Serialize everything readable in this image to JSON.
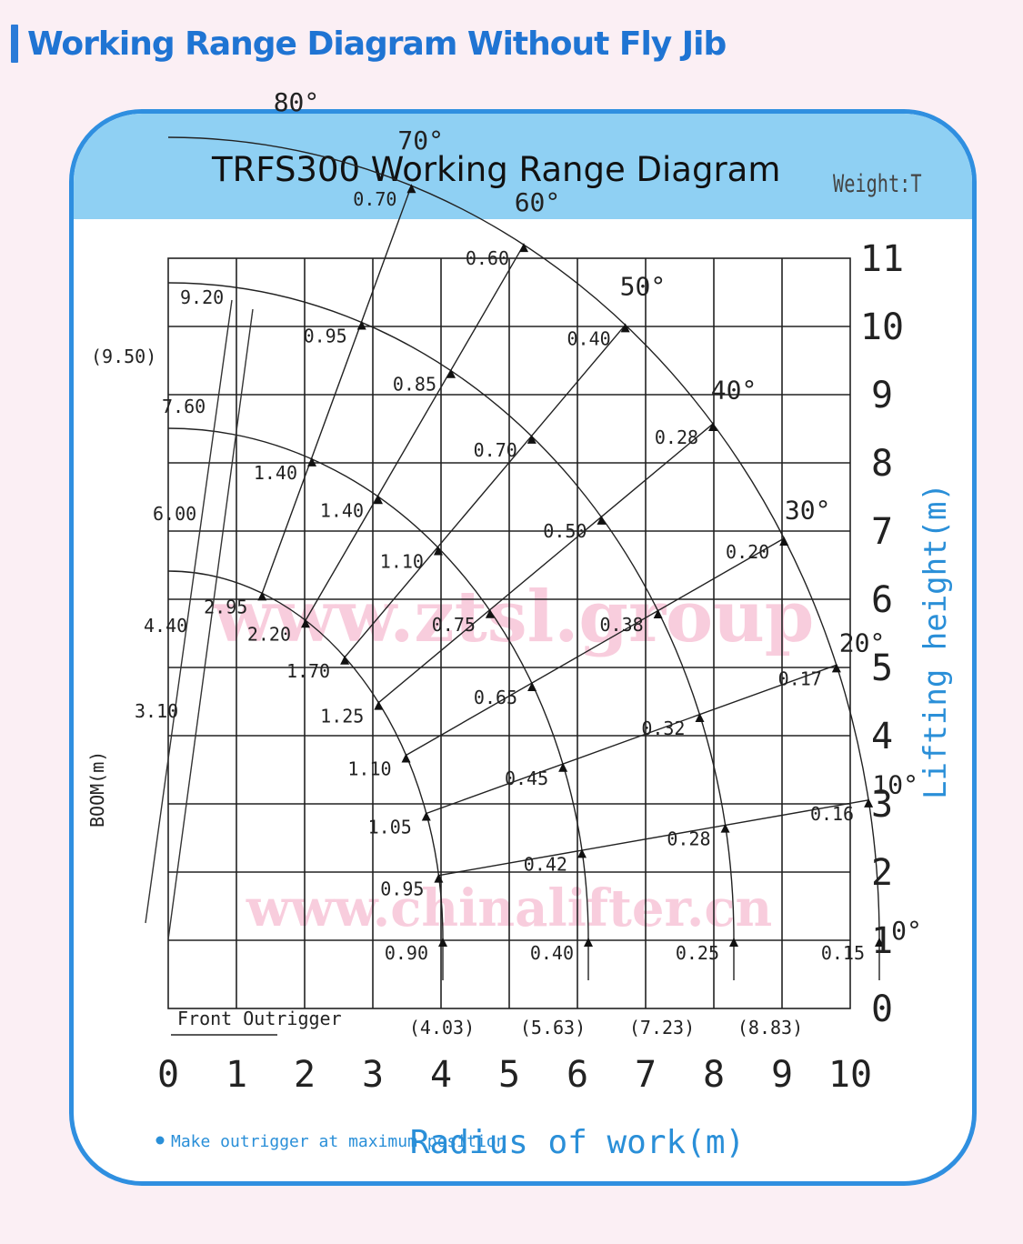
{
  "page_heading": "Working Range Diagram Without Fly Jib",
  "card": {
    "title": "TRFS300  Working Range Diagram",
    "weight_unit": "Weight:T",
    "note": "Make outrigger at maximum position",
    "front_outrigger": "Front Outrigger",
    "boom_label": "BOOM(m)",
    "watermarks": [
      "www.ztsl.group",
      "www.chinalifter.cn"
    ],
    "colors": {
      "accent_border": "#2f8fe0",
      "header_band": "#8fd0f3",
      "axis_title": "#2a8fd8",
      "background": "#fbeff4"
    }
  },
  "chart_data": {
    "type": "diagram",
    "xlabel": "Radius of work(m)",
    "ylabel": "Lifting height(m)",
    "x_ticks": [
      "0",
      "1",
      "2",
      "3",
      "4",
      "5",
      "6",
      "7",
      "8",
      "9",
      "10"
    ],
    "y_ticks": [
      "0",
      "1",
      "2",
      "3",
      "4",
      "5",
      "6",
      "7",
      "8",
      "9",
      "10",
      "11"
    ],
    "xlim": [
      0,
      10
    ],
    "ylim": [
      0,
      11
    ],
    "boom_lengths": [
      "9.20",
      "(9.50)",
      "7.60",
      "6.00",
      "4.40",
      "3.10"
    ],
    "max_radii": [
      "(4.03)",
      "(5.63)",
      "(7.23)",
      "(8.83)"
    ],
    "angle_labels": [
      "80°",
      "70°",
      "60°",
      "50°",
      "40°",
      "30°",
      "20°",
      "10°",
      "0°"
    ],
    "load_labels": [
      "0.70",
      "0.60",
      "0.40",
      "0.28",
      "0.20",
      "0.17",
      "0.16",
      "0.15",
      "0.95",
      "0.85",
      "0.70",
      "0.50",
      "0.38",
      "0.32",
      "0.28",
      "0.25",
      "1.40",
      "1.40",
      "1.10",
      "0.75",
      "0.65",
      "0.45",
      "0.42",
      "0.40",
      "2.95",
      "2.20",
      "1.70",
      "1.25",
      "1.10",
      "1.05",
      "0.95",
      "0.90"
    ]
  }
}
